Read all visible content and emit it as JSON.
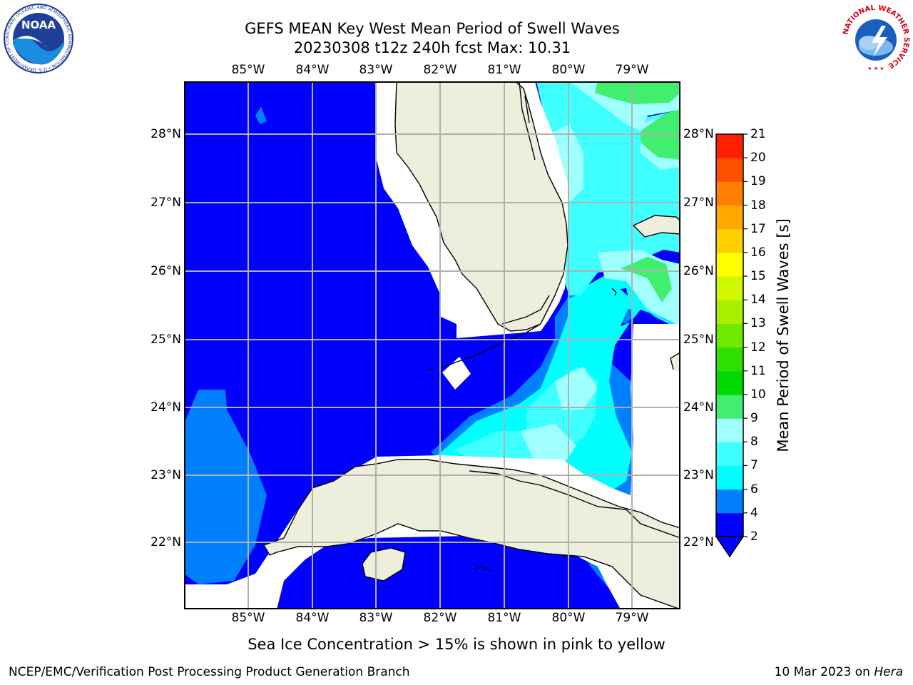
{
  "header": {
    "title_line1": "GEFS MEAN Key West Mean Period of Swell Waves",
    "title_line2": "20230308 t12z 240h fcst   Max: 10.31"
  },
  "logos": {
    "noaa": {
      "text": "NOAA",
      "ring_text": "NATIONAL OCEANIC AND ATMOSPHERIC ADMINISTRATION • U.S. DEPARTMENT OF COMMERCE"
    },
    "nws": {
      "ring_text": "NATIONAL WEATHER SERVICE"
    }
  },
  "map": {
    "lon_labels": [
      "85°W",
      "84°W",
      "83°W",
      "82°W",
      "81°W",
      "80°W",
      "79°W"
    ],
    "lat_labels": [
      "28°N",
      "27°N",
      "26°N",
      "25°N",
      "24°N",
      "23°N",
      "22°N"
    ],
    "colors": {
      "land": "#eeeedd",
      "ocean_2_4": "#0000ff",
      "ocean_4_6": "#0080ff",
      "ocean_6_7": "#00ffff",
      "ocean_7_8": "#40ffff",
      "ocean_8_9": "#a0ffff",
      "ocean_9_10": "#40ee70",
      "grid": "#b0b0b0"
    }
  },
  "colorbar": {
    "title": "Mean Period of Swell Waves [s]",
    "labels": [
      "2",
      "4",
      "6",
      "7",
      "8",
      "9",
      "10",
      "11",
      "12",
      "13",
      "14",
      "15",
      "16",
      "17",
      "18",
      "19",
      "20",
      "21"
    ],
    "colors": [
      "#0000ff",
      "#0080ff",
      "#00ffff",
      "#40ffff",
      "#a0ffff",
      "#40ee70",
      "#00d800",
      "#30e000",
      "#70e800",
      "#a8f000",
      "#d0f800",
      "#ffff00",
      "#ffd000",
      "#ffa800",
      "#ff8000",
      "#ff5000",
      "#ff2000"
    ]
  },
  "footer": {
    "note": "Sea Ice Concentration > 15% is shown in pink to yellow",
    "credit_left": "NCEP/EMC/Verification Post Processing Product Generation Branch",
    "credit_date": "10 Mar 2023 on",
    "credit_machine": "Hera"
  }
}
